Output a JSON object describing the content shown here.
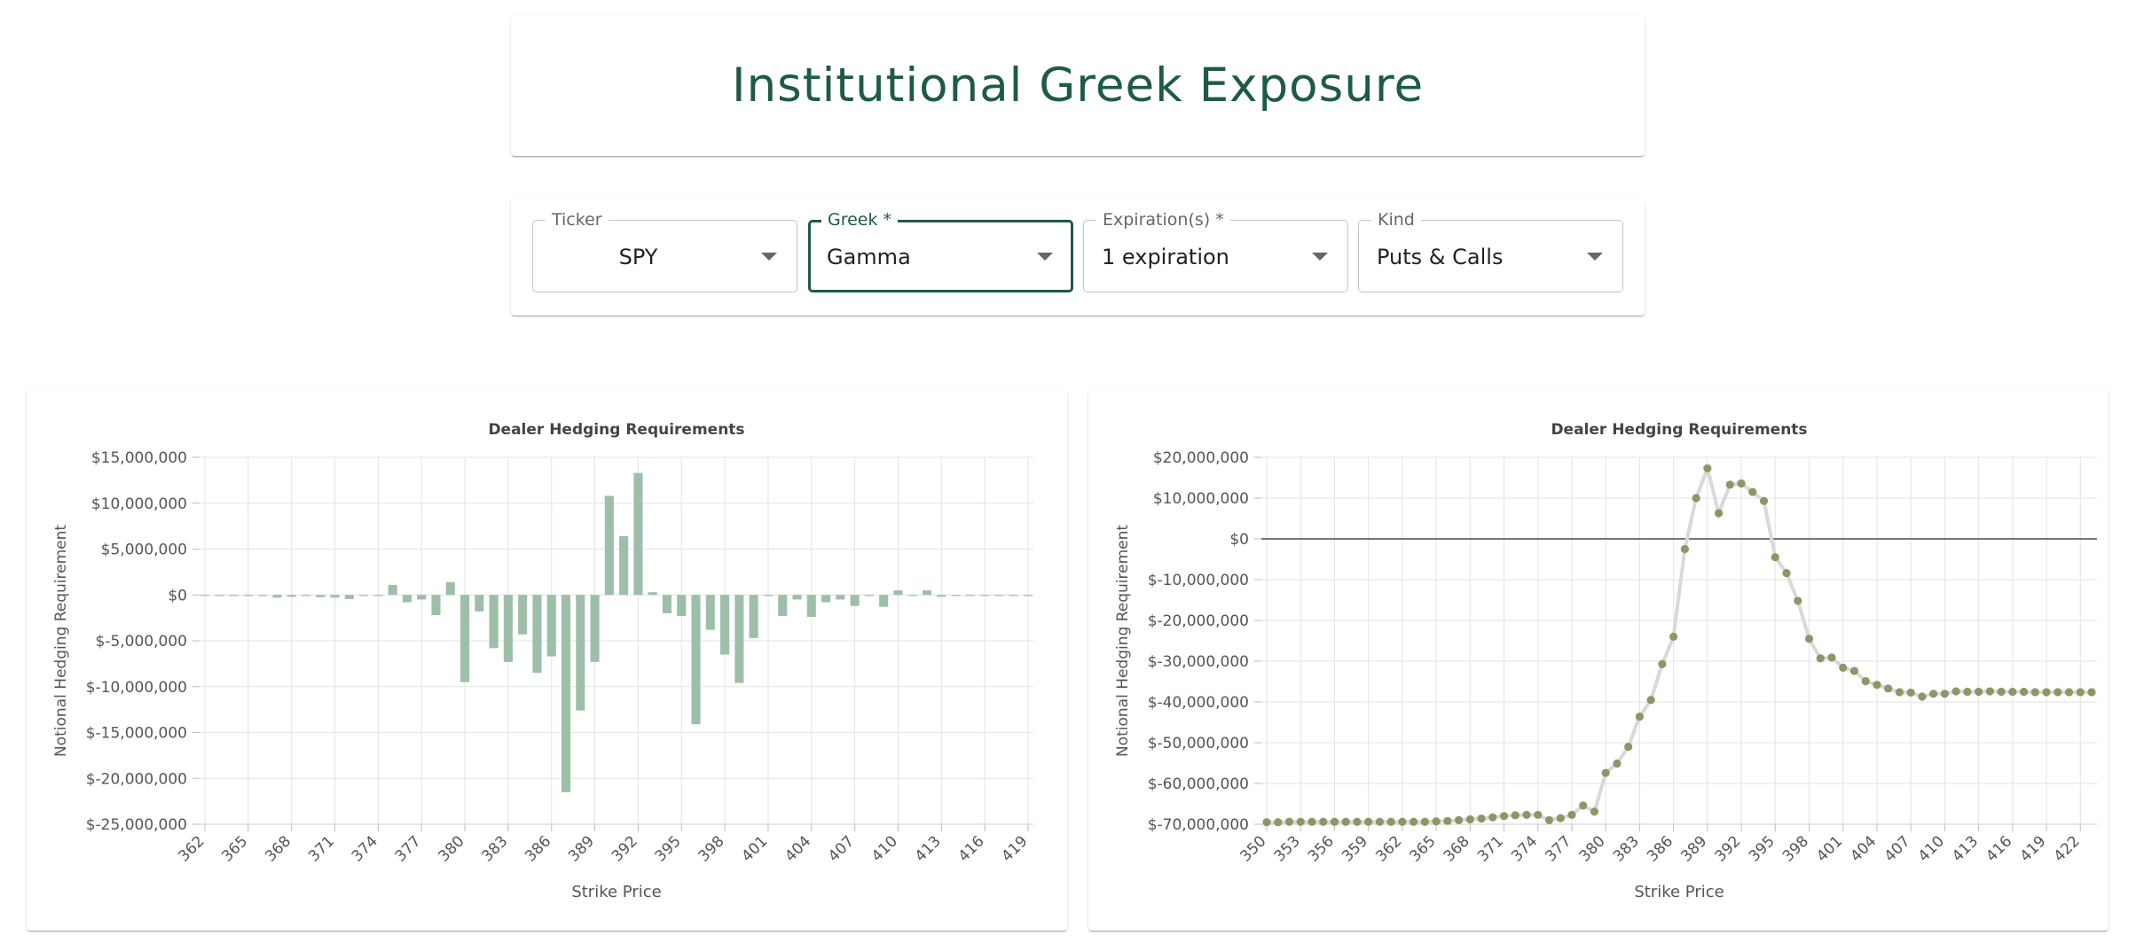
{
  "header": {
    "title": "Institutional Greek Exposure"
  },
  "controls": {
    "ticker": {
      "label": "Ticker",
      "value": "SPY"
    },
    "greek": {
      "label": "Greek *",
      "value": "Gamma"
    },
    "expirations": {
      "label": "Expiration(s) *",
      "value": "1 expiration"
    },
    "kind": {
      "label": "Kind",
      "value": "Puts & Calls"
    }
  },
  "colors": {
    "accent": "#1e5a45",
    "bar": "#9dbfa8",
    "point": "#8f9565",
    "line": "#d9d9d9"
  },
  "chart_data": [
    {
      "type": "bar",
      "title": "Dealer Hedging Requirements",
      "xlabel": "Strike Price",
      "ylabel": "Notional Hedging Requirement",
      "ylim": [
        -25000000,
        15000000
      ],
      "yticks": [
        "$15,000,000",
        "$10,000,000",
        "$5,000,000",
        "$0",
        "$-5,000,000",
        "$-10,000,000",
        "$-15,000,000",
        "$-20,000,000",
        "$-25,000,000"
      ],
      "xticks": [
        "362",
        "365",
        "368",
        "371",
        "374",
        "377",
        "380",
        "383",
        "386",
        "389",
        "392",
        "395",
        "398",
        "401",
        "404",
        "407",
        "410",
        "413",
        "416",
        "419"
      ],
      "grid": true,
      "categories": [
        362,
        363,
        364,
        365,
        366,
        367,
        368,
        369,
        370,
        371,
        372,
        373,
        374,
        375,
        376,
        377,
        378,
        379,
        380,
        381,
        382,
        383,
        384,
        385,
        386,
        387,
        388,
        389,
        390,
        391,
        392,
        393,
        394,
        395,
        396,
        397,
        398,
        399,
        400,
        401,
        402,
        403,
        404,
        405,
        406,
        407,
        408,
        409,
        410,
        411,
        412,
        413,
        414,
        415,
        416,
        417,
        418,
        419
      ],
      "values": [
        -100000,
        -50000,
        -30000,
        -50000,
        -100000,
        -300000,
        -200000,
        -50000,
        -250000,
        -300000,
        -450000,
        -50000,
        -50000,
        1100000,
        -800000,
        -500000,
        -2200000,
        1400000,
        -9500000,
        -1800000,
        -5800000,
        -7300000,
        -4300000,
        -8500000,
        -6700000,
        -21500000,
        -12600000,
        -7300000,
        10800000,
        6400000,
        13300000,
        300000,
        -2000000,
        -2300000,
        -14100000,
        -3800000,
        -6500000,
        -9600000,
        -4700000,
        -50000,
        -2300000,
        -500000,
        -2400000,
        -800000,
        -500000,
        -1200000,
        -50000,
        -1300000,
        500000,
        -50000,
        500000,
        -200000,
        -50000,
        -50000,
        -50000,
        -100000,
        -50000,
        -100000
      ]
    },
    {
      "type": "line",
      "title": "Dealer Hedging Requirements",
      "xlabel": "Strike Price",
      "ylabel": "Notional Hedging Requirement",
      "ylim": [
        -70000000,
        20000000
      ],
      "yticks": [
        "$20,000,000",
        "$10,000,000",
        "$0",
        "$-10,000,000",
        "$-20,000,000",
        "$-30,000,000",
        "$-40,000,000",
        "$-50,000,000",
        "$-60,000,000",
        "$-70,000,000"
      ],
      "xticks": [
        "350",
        "353",
        "356",
        "359",
        "362",
        "365",
        "368",
        "371",
        "374",
        "377",
        "380",
        "383",
        "386",
        "389",
        "392",
        "395",
        "398",
        "401",
        "404",
        "407",
        "410",
        "413",
        "416",
        "419",
        "422"
      ],
      "grid": true,
      "x": [
        350,
        351,
        352,
        353,
        354,
        355,
        356,
        357,
        358,
        359,
        360,
        361,
        362,
        363,
        364,
        365,
        366,
        367,
        368,
        369,
        370,
        371,
        372,
        373,
        374,
        375,
        376,
        377,
        378,
        379,
        380,
        381,
        382,
        383,
        384,
        385,
        386,
        387,
        388,
        389,
        390,
        391,
        392,
        393,
        394,
        395,
        396,
        397,
        398,
        399,
        400,
        401,
        402,
        403,
        404,
        405,
        406,
        407,
        408,
        409,
        410,
        411,
        412,
        413,
        414,
        415,
        416,
        417,
        418,
        419,
        420,
        421,
        422,
        423
      ],
      "y": [
        -69500000,
        -69500000,
        -69400000,
        -69400000,
        -69400000,
        -69400000,
        -69400000,
        -69400000,
        -69400000,
        -69400000,
        -69400000,
        -69400000,
        -69400000,
        -69400000,
        -69400000,
        -69300000,
        -69200000,
        -69000000,
        -68800000,
        -68600000,
        -68300000,
        -68000000,
        -67800000,
        -67700000,
        -67700000,
        -69000000,
        -68500000,
        -67700000,
        -65400000,
        -66900000,
        -57400000,
        -55100000,
        -51000000,
        -43600000,
        -39500000,
        -30700000,
        -24000000,
        -2500000,
        10000000,
        17300000,
        6300000,
        13300000,
        13600000,
        11500000,
        9300000,
        -4500000,
        -8400000,
        -15200000,
        -24500000,
        -29300000,
        -29100000,
        -31600000,
        -32400000,
        -34900000,
        -35800000,
        -36700000,
        -37600000,
        -37700000,
        -38700000,
        -38000000,
        -38000000,
        -37400000,
        -37500000,
        -37500000,
        -37400000,
        -37500000,
        -37500000,
        -37500000,
        -37600000,
        -37600000,
        -37600000,
        -37600000,
        -37600000,
        -37600000
      ]
    }
  ]
}
